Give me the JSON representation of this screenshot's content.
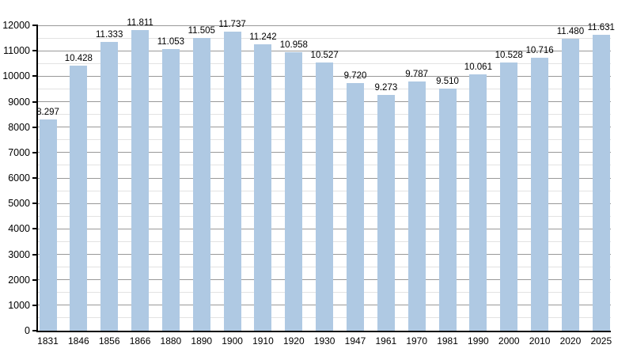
{
  "chart_data": {
    "type": "bar",
    "title": "",
    "xlabel": "",
    "ylabel": "",
    "categories": [
      "1831",
      "1846",
      "1856",
      "1866",
      "1880",
      "1890",
      "1900",
      "1910",
      "1920",
      "1930",
      "1947",
      "1961",
      "1970",
      "1981",
      "1990",
      "2000",
      "2010",
      "2020",
      "2025"
    ],
    "values": [
      8297,
      10428,
      11333,
      11811,
      11053,
      11505,
      11737,
      11242,
      10958,
      10527,
      9720,
      9273,
      9787,
      9510,
      10061,
      10528,
      10716,
      11480,
      11631
    ],
    "value_labels": [
      "8.297",
      "10.428",
      "11.333",
      "11.811",
      "11.053",
      "11.505",
      "11.737",
      "11.242",
      "10.958",
      "10.527",
      "9.720",
      "9.273",
      "9.787",
      "9.510",
      "10.061",
      "10.528",
      "10.716",
      "11.480",
      "11.631"
    ],
    "ylim": [
      0,
      12000
    ],
    "y_major_step": 1000,
    "y_minor_step": 500,
    "y_tick_labels": [
      "0",
      "1000",
      "2000",
      "3000",
      "4000",
      "5000",
      "6000",
      "7000",
      "8000",
      "9000",
      "10000",
      "11000",
      "12000"
    ],
    "grid": "major-and-minor-horizontal",
    "legend": "none",
    "colors": {
      "bar": "#afc9e3",
      "major_grid": "#999999",
      "minor_grid": "#e2e2e2",
      "axis": "#000000",
      "text": "#000000",
      "background": "#ffffff"
    }
  }
}
